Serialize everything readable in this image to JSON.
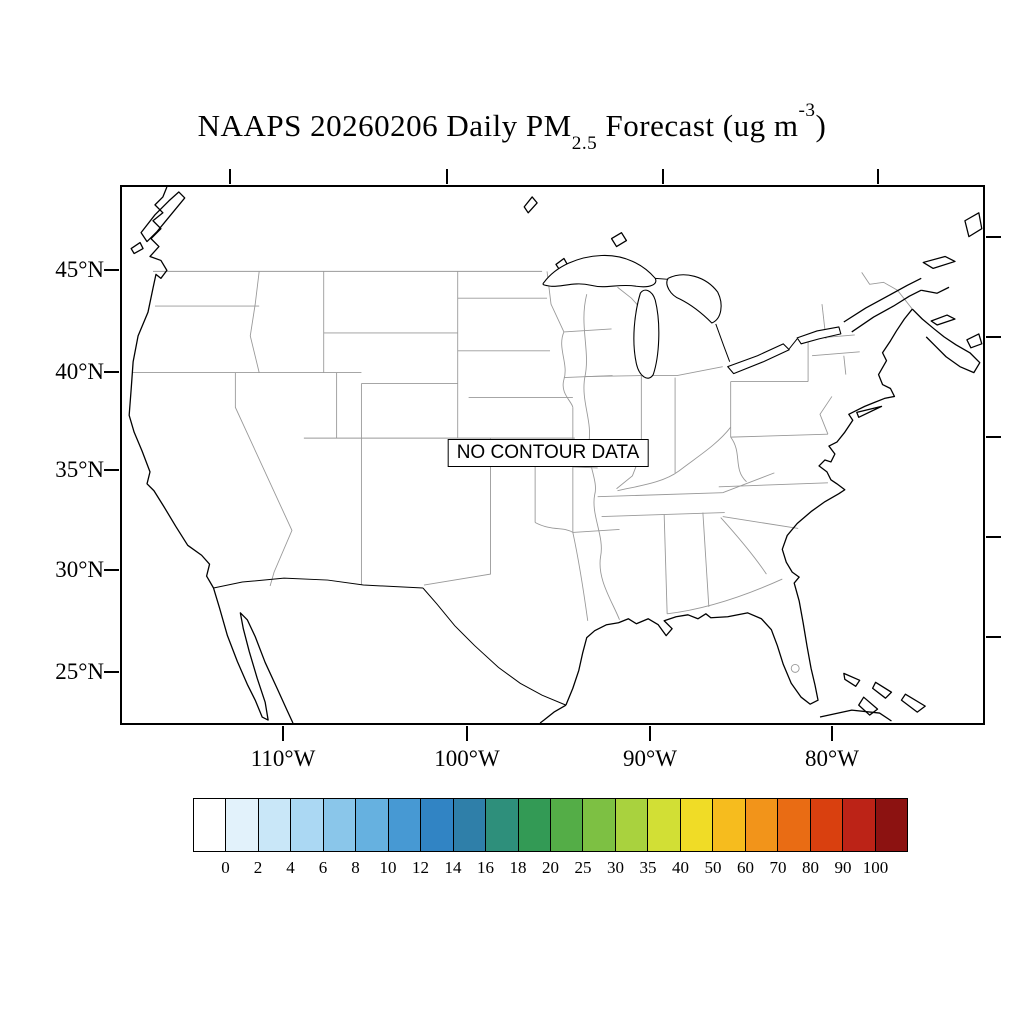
{
  "title": {
    "prefix": "NAAPS 20260206 Daily PM",
    "subscript": "2.5",
    "middle": " Forecast (ug m",
    "superscript": "-3",
    "suffix": ")"
  },
  "map": {
    "no_data_label": "NO CONTOUR DATA",
    "lat_labels": [
      "45°N",
      "40°N",
      "35°N",
      "30°N",
      "25°N"
    ],
    "lon_labels": [
      "110°W",
      "100°W",
      "90°W",
      "80°W"
    ]
  },
  "colorbar": {
    "tick_labels": [
      "0",
      "2",
      "4",
      "6",
      "8",
      "10",
      "12",
      "14",
      "16",
      "18",
      "20",
      "25",
      "30",
      "35",
      "40",
      "50",
      "60",
      "70",
      "80",
      "90",
      "100"
    ],
    "colors": [
      "#ffffff",
      "#e2f2fb",
      "#c9e7f8",
      "#abd8f3",
      "#8ac6ea",
      "#66b1e0",
      "#4799d3",
      "#3184c4",
      "#2f7fa9",
      "#2e8f7b",
      "#339a55",
      "#54ad47",
      "#7dc043",
      "#a9d23e",
      "#d2df35",
      "#f0dc26",
      "#f6bc1e",
      "#f2941a",
      "#e96c14",
      "#d9400f",
      "#bc2317",
      "#8c1211"
    ],
    "line_color": "#000000"
  },
  "map_colors": {
    "coastline": "#000000",
    "state_borders": "#999999"
  }
}
